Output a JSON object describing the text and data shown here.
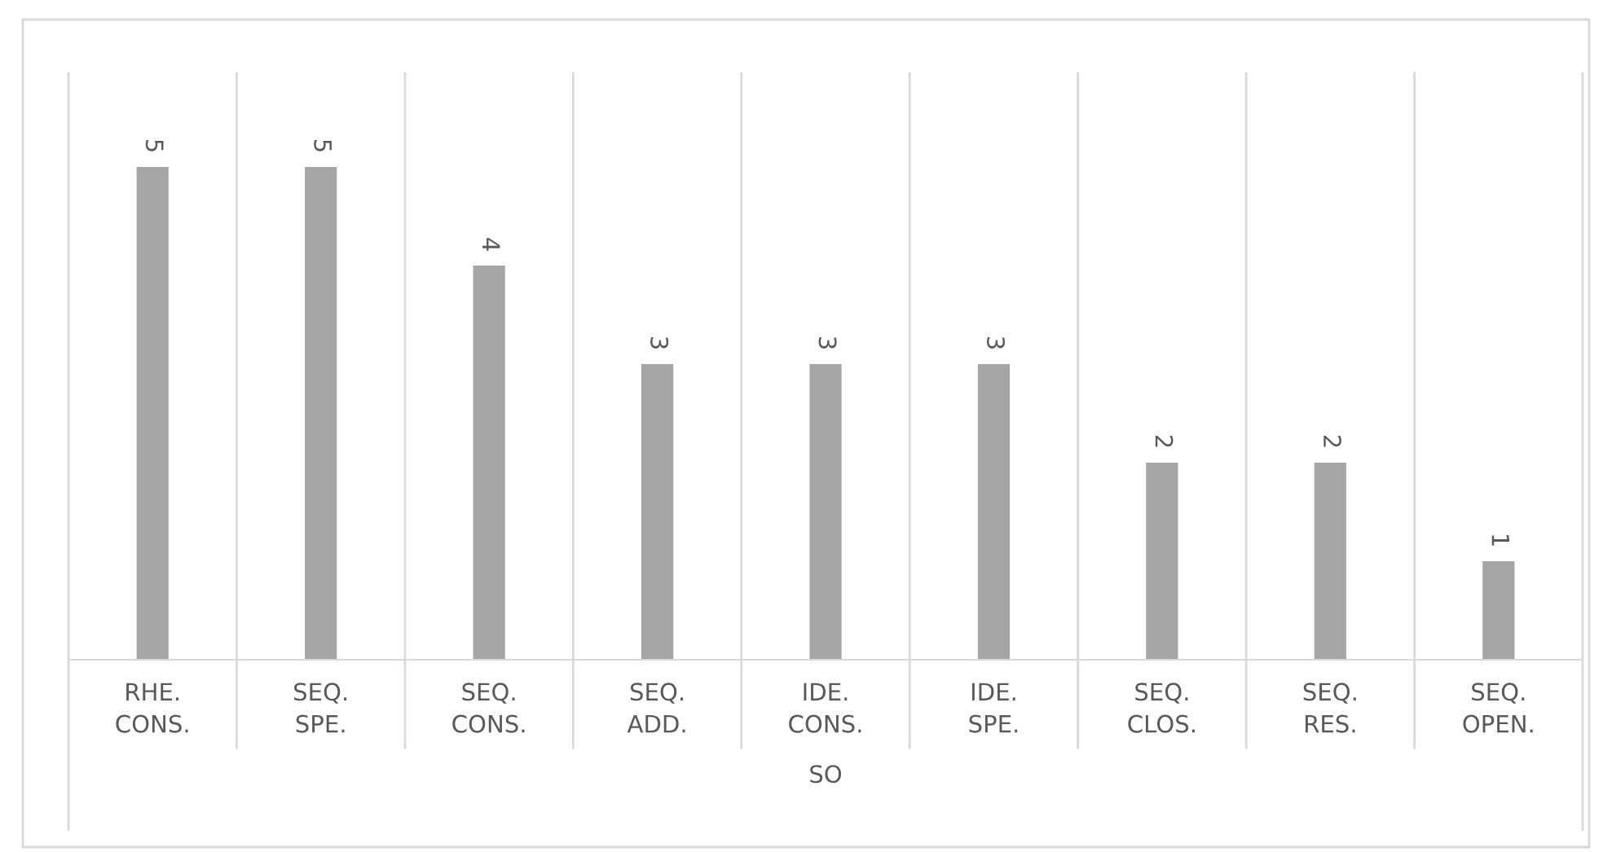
{
  "chart_data": {
    "type": "bar",
    "xlabel": "SO",
    "categories": [
      "RHE.\nCONS.",
      "SEQ.\nSPE.",
      "SEQ.\nCONS.",
      "SEQ.\nADD.",
      "IDE.\nCONS.",
      "IDE.\nSPE.",
      "SEQ.\nCLOS.",
      "SEQ.\nRES.",
      "SEQ.\nOPEN."
    ],
    "values": [
      5,
      5,
      4,
      3,
      3,
      3,
      2,
      2,
      1
    ],
    "color": "#a5a5a5",
    "data_labels": true,
    "grid": "x",
    "legend": false
  }
}
